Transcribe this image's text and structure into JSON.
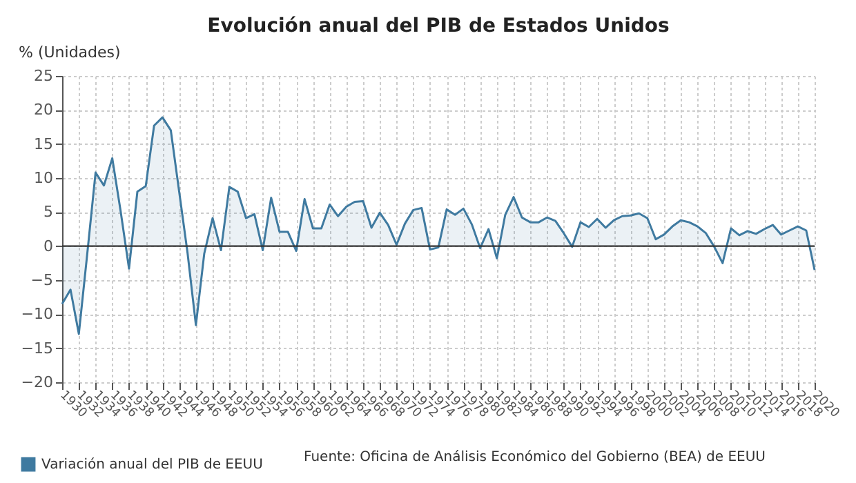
{
  "chart_data": {
    "type": "area",
    "title": "Evolución anual del PIB de Estados Unidos",
    "ylabel": "% (Unidades)",
    "x": [
      1930,
      1931,
      1932,
      1933,
      1934,
      1935,
      1936,
      1937,
      1938,
      1939,
      1940,
      1941,
      1942,
      1943,
      1944,
      1945,
      1946,
      1947,
      1948,
      1949,
      1950,
      1951,
      1952,
      1953,
      1954,
      1955,
      1956,
      1957,
      1958,
      1959,
      1960,
      1961,
      1962,
      1963,
      1964,
      1965,
      1966,
      1967,
      1968,
      1969,
      1970,
      1971,
      1972,
      1973,
      1974,
      1975,
      1976,
      1977,
      1978,
      1979,
      1980,
      1981,
      1982,
      1983,
      1984,
      1985,
      1986,
      1987,
      1988,
      1989,
      1990,
      1991,
      1992,
      1993,
      1994,
      1995,
      1996,
      1997,
      1998,
      1999,
      2000,
      2001,
      2002,
      2003,
      2004,
      2005,
      2006,
      2007,
      2008,
      2009,
      2010,
      2011,
      2012,
      2013,
      2014,
      2015,
      2016,
      2017,
      2018,
      2019,
      2020
    ],
    "series": [
      {
        "name": "Variación anual del PIB de EEUU",
        "color": "#3f7aa0",
        "values": [
          -8.5,
          -6.4,
          -12.9,
          -1.2,
          10.8,
          8.9,
          12.9,
          5.1,
          -3.3,
          8.0,
          8.8,
          17.7,
          18.9,
          17.0,
          8.0,
          -1.0,
          -11.6,
          -1.1,
          4.1,
          -0.6,
          8.7,
          8.0,
          4.1,
          4.7,
          -0.6,
          7.1,
          2.1,
          2.1,
          -0.7,
          6.9,
          2.6,
          2.6,
          6.1,
          4.4,
          5.8,
          6.5,
          6.6,
          2.7,
          4.9,
          3.1,
          0.2,
          3.3,
          5.3,
          5.6,
          -0.5,
          -0.2,
          5.4,
          4.6,
          5.5,
          3.2,
          -0.3,
          2.5,
          -1.8,
          4.6,
          7.2,
          4.2,
          3.5,
          3.5,
          4.2,
          3.7,
          1.9,
          -0.1,
          3.5,
          2.8,
          4.0,
          2.7,
          3.8,
          4.4,
          4.5,
          4.8,
          4.1,
          1.0,
          1.7,
          2.9,
          3.8,
          3.5,
          2.9,
          1.9,
          -0.1,
          -2.5,
          2.6,
          1.6,
          2.2,
          1.8,
          2.5,
          3.1,
          1.7,
          2.3,
          2.9,
          2.3,
          -3.5
        ]
      }
    ],
    "xlim": [
      1930,
      2020
    ],
    "xticks": [
      1930,
      1932,
      1934,
      1936,
      1938,
      1940,
      1942,
      1944,
      1946,
      1948,
      1950,
      1952,
      1954,
      1956,
      1958,
      1960,
      1962,
      1964,
      1966,
      1968,
      1970,
      1972,
      1974,
      1976,
      1978,
      1980,
      1982,
      1984,
      1986,
      1988,
      1990,
      1992,
      1994,
      1996,
      1998,
      2000,
      2002,
      2004,
      2006,
      2008,
      2010,
      2012,
      2014,
      2016,
      2018,
      2020
    ],
    "ylim": [
      -20,
      25
    ],
    "yticks": [
      -20,
      -15,
      -10,
      -5,
      0,
      5,
      10,
      15,
      20,
      25
    ],
    "ref_lines": [
      {
        "axis": "y",
        "value": 0,
        "color": "#333333"
      }
    ],
    "grid": true,
    "legend": "bottom",
    "marker": "none",
    "line_style": "solid",
    "annotations": [
      "Fuente: Oficina de Análisis Económico del Gobierno (BEA) de EEUU"
    ]
  }
}
